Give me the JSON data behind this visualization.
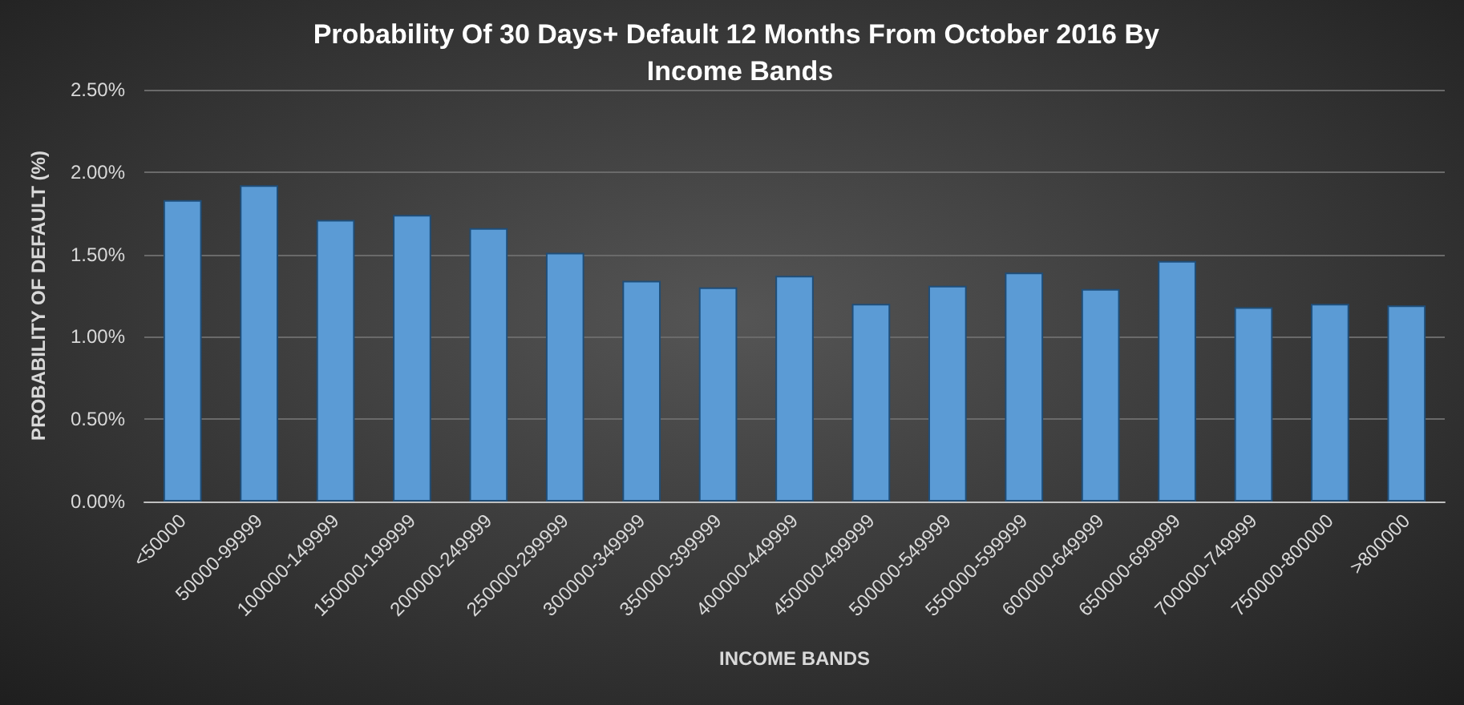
{
  "chart_data": {
    "type": "bar",
    "title": "Probability Of 30 Days+ Default 12 Months From October 2016 By Income Bands",
    "xlabel": "INCOME BANDS",
    "ylabel": "PROBABILITY OF DEFAULT (%)",
    "categories": [
      "<50000",
      "50000-99999",
      "100000-149999",
      "150000-199999",
      "200000-249999",
      "250000-299999",
      "300000-349999",
      "350000-399999",
      "400000-449999",
      "450000-499999",
      "500000-549999",
      "550000-599999",
      "600000-649999",
      "650000-699999",
      "700000-749999",
      "750000-800000",
      ">800000"
    ],
    "values": [
      1.83,
      1.92,
      1.71,
      1.74,
      1.66,
      1.51,
      1.34,
      1.3,
      1.37,
      1.2,
      1.31,
      1.39,
      1.29,
      1.46,
      1.18,
      1.2,
      1.19
    ],
    "color": "#5b9bd5",
    "ylim": [
      0,
      2.5
    ],
    "yticks": [
      {
        "value": 0,
        "label": "0.00%"
      },
      {
        "value": 0.5,
        "label": "0.50%"
      },
      {
        "value": 1,
        "label": "1.00%"
      },
      {
        "value": 1.5,
        "label": "1.50%"
      },
      {
        "value": 2,
        "label": "2.00%"
      },
      {
        "value": 2.5,
        "label": "2.50%"
      }
    ],
    "grid": "y"
  }
}
